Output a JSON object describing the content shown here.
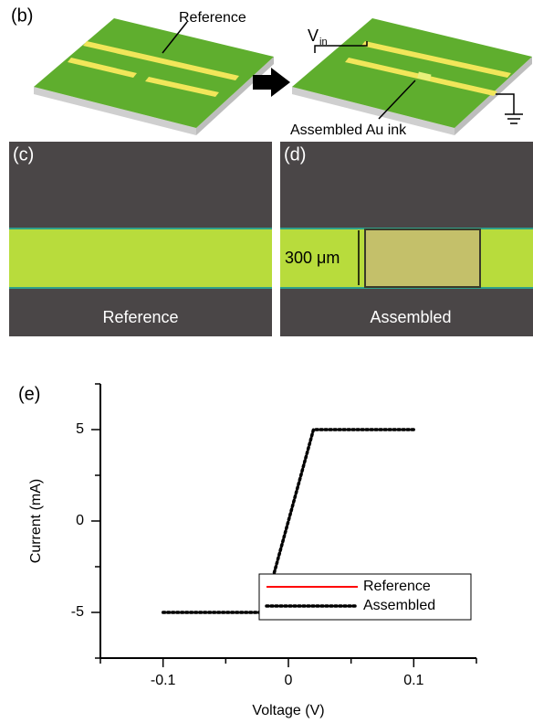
{
  "panels": {
    "b": {
      "label": "(b)",
      "reference_label": "Reference",
      "voltage_symbol": "V",
      "voltage_subscript": "in",
      "ink_label": "Assembled Au ink"
    },
    "c": {
      "label": "(c)",
      "caption": "Reference"
    },
    "d": {
      "label": "(d)",
      "caption": "Assembled",
      "scale_label": "300 μm"
    }
  },
  "chart_data": {
    "type": "line",
    "panel_label": "(e)",
    "x_label": "Voltage (V)",
    "y_label": "Current (mA)",
    "x": [
      -0.1,
      -0.09,
      -0.08,
      -0.07,
      -0.06,
      -0.05,
      -0.04,
      -0.03,
      -0.02,
      -0.01,
      0,
      0.01,
      0.02,
      0.03,
      0.04,
      0.05,
      0.06,
      0.07,
      0.08,
      0.09,
      0.1
    ],
    "series": [
      {
        "name": "Reference",
        "color": "#ff0000",
        "style": "solid",
        "values": [
          -5,
          -5,
          -5,
          -5,
          -5,
          -5,
          -5,
          -5,
          -5,
          -2.5,
          0,
          2.5,
          5,
          5,
          5,
          5,
          5,
          5,
          5,
          5,
          5
        ]
      },
      {
        "name": "Assembled",
        "color": "#000000",
        "style": "dotted",
        "values": [
          -5,
          -5,
          -5,
          -5,
          -5,
          -5,
          -5,
          -5,
          -5,
          -2.5,
          0,
          2.5,
          5,
          5,
          5,
          5,
          5,
          5,
          5,
          5,
          5
        ]
      }
    ],
    "xlim": [
      -0.15,
      0.15
    ],
    "ylim": [
      -7.5,
      7.5
    ],
    "xticks": [
      -0.1,
      0,
      0.1
    ],
    "yticks": [
      -5,
      0,
      5
    ],
    "x_minor_ticks": [
      -0.15,
      -0.05,
      0.05,
      0.15
    ],
    "y_minor_ticks": [
      -7.5,
      -2.5,
      2.5,
      7.5
    ],
    "grid": false,
    "legend": "lower right"
  }
}
